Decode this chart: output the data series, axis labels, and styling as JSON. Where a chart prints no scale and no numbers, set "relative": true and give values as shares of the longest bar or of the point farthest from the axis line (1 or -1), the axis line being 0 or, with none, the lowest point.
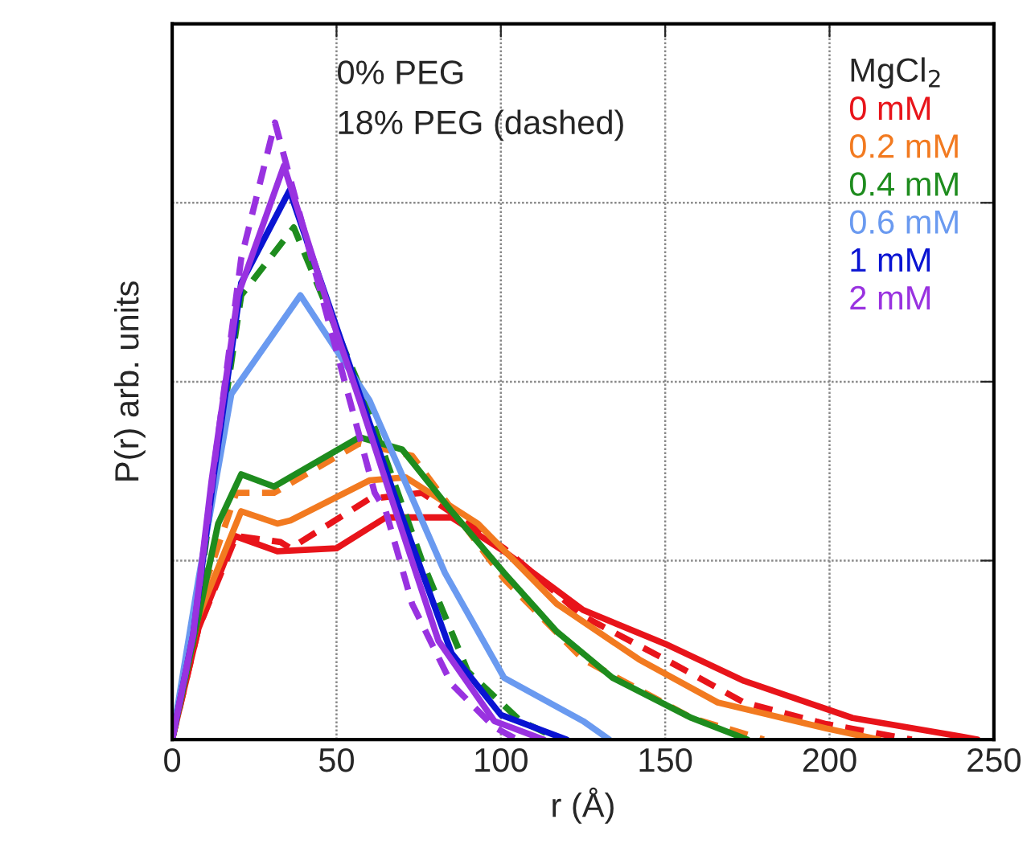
{
  "chart_data": {
    "type": "line",
    "relative": true,
    "xlabel": "r (Å)",
    "ylabel": "P(r) arb. units",
    "xlim": [
      0,
      250
    ],
    "xticks": [
      0,
      50,
      100,
      150,
      200,
      250
    ],
    "grid": true,
    "legend": "top right",
    "legend_title": "MgCl$_{2}$",
    "tick_labels": "x",
    "annotations": [
      "0% PEG",
      "18% PEG (dashed)"
    ],
    "series": [
      {
        "name": "0 mM",
        "color": "#e8141a",
        "line_style": "solid",
        "x": [
          0,
          8,
          19,
          32,
          50,
          65,
          85,
          101,
          125,
          150,
          174,
          207,
          240,
          245
        ],
        "values": [
          0,
          0.18,
          0.33,
          0.305,
          0.31,
          0.36,
          0.36,
          0.305,
          0.21,
          0.155,
          0.095,
          0.035,
          0.005,
          0
        ]
      },
      {
        "color": "#e8141a",
        "line_style": "dashed",
        "x": [
          0,
          8,
          19.5,
          33,
          36,
          60,
          76,
          101,
          125,
          150,
          174,
          199,
          225
        ],
        "values": [
          0,
          0.18,
          0.33,
          0.32,
          0.31,
          0.39,
          0.4,
          0.31,
          0.2,
          0.13,
          0.06,
          0.025,
          0
        ]
      },
      {
        "name": "0.2 mM",
        "color": "#f27a20",
        "line_style": "solid",
        "x": [
          0,
          8,
          21,
          32,
          36,
          60,
          71,
          93,
          117,
          142,
          166,
          199,
          215
        ],
        "values": [
          0,
          0.2,
          0.37,
          0.35,
          0.355,
          0.42,
          0.425,
          0.35,
          0.22,
          0.13,
          0.06,
          0.018,
          0
        ]
      },
      {
        "color": "#f27a20",
        "line_style": "dashed",
        "x": [
          0,
          8,
          19.5,
          31,
          57,
          73,
          101,
          125,
          158,
          180
        ],
        "values": [
          0,
          0.22,
          0.4,
          0.4,
          0.48,
          0.46,
          0.26,
          0.13,
          0.035,
          0
        ]
      },
      {
        "name": "0.4 mM",
        "color": "#1e8c1e",
        "line_style": "solid",
        "x": [
          0,
          6,
          14,
          21,
          31,
          57,
          70,
          85,
          101,
          117,
          134,
          158,
          175
        ],
        "values": [
          0,
          0.15,
          0.35,
          0.43,
          0.41,
          0.49,
          0.47,
          0.37,
          0.27,
          0.175,
          0.1,
          0.035,
          0
        ]
      },
      {
        "color": "#1e8c1e",
        "line_style": "dashed",
        "x": [
          0,
          6.4,
          12.7,
          21,
          37,
          58,
          76,
          90,
          106,
          118
        ],
        "values": [
          0,
          0.16,
          0.42,
          0.72,
          0.83,
          0.56,
          0.29,
          0.11,
          0.03,
          0
        ]
      },
      {
        "name": "0.6 mM",
        "color": "#6a9af0",
        "line_style": "solid",
        "x": [
          0,
          8,
          18,
          39,
          60,
          83,
          101,
          125,
          133
        ],
        "values": [
          0,
          0.26,
          0.56,
          0.72,
          0.55,
          0.27,
          0.1,
          0.03,
          0
        ]
      },
      {
        "name": "1 mM",
        "color": "#0a14d2",
        "line_style": "solid",
        "x": [
          0,
          6.4,
          12.7,
          21,
          35.7,
          57,
          70,
          85,
          100,
          120
        ],
        "values": [
          0,
          0.17,
          0.43,
          0.74,
          0.89,
          0.56,
          0.36,
          0.14,
          0.04,
          0
        ]
      },
      {
        "name": "2 mM",
        "color": "#9932e0",
        "line_style": "solid",
        "x": [
          0,
          6.4,
          12,
          20,
          34,
          50,
          57,
          68,
          81,
          98,
          113
        ],
        "values": [
          0,
          0.17,
          0.42,
          0.72,
          0.93,
          0.66,
          0.55,
          0.37,
          0.16,
          0.03,
          0
        ]
      },
      {
        "color": "#9932e0",
        "line_style": "dashed",
        "x": [
          0,
          6.4,
          12.7,
          21,
          31.3,
          61.6,
          65,
          73,
          85,
          98,
          105
        ],
        "values": [
          0,
          0.17,
          0.44,
          0.78,
          1.0,
          0.4,
          0.37,
          0.22,
          0.09,
          0.02,
          0
        ]
      }
    ]
  }
}
